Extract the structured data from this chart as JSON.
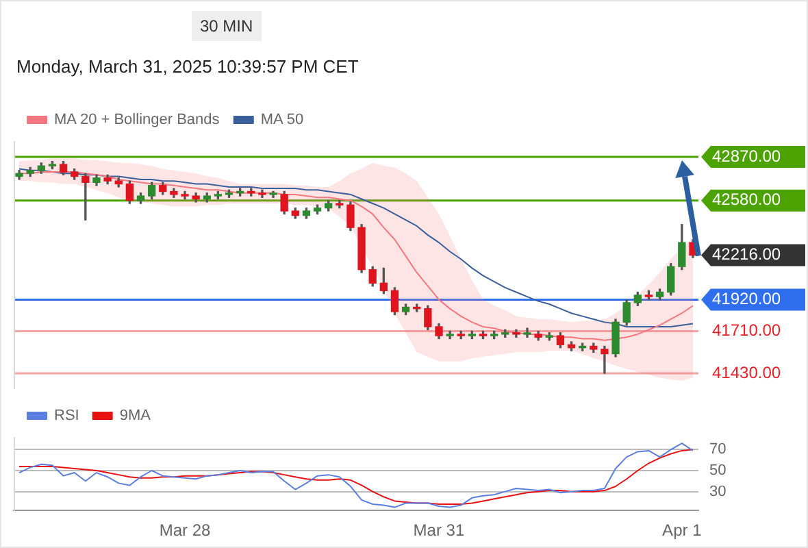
{
  "chart_data": [
    {
      "type": "candlestick",
      "subtitle": "Monday, March 31, 2025 10:39:57 PM CET",
      "annotations": [
        "30 MIN"
      ],
      "categories": [
        null,
        null,
        null,
        null,
        null,
        null,
        null,
        null,
        null,
        null,
        null,
        null,
        null,
        null,
        null,
        null,
        null,
        null,
        null,
        null,
        null,
        null,
        null,
        null,
        null,
        null,
        null,
        null,
        null,
        null,
        null,
        null,
        null,
        null,
        null,
        null,
        null,
        null,
        null,
        null,
        null,
        null,
        null,
        null,
        null,
        null,
        null,
        null,
        null,
        null,
        null,
        null,
        null,
        null,
        null,
        null,
        null,
        null,
        null,
        null,
        null,
        null
      ],
      "ohlc": [
        [
          42740,
          42780,
          42720,
          42760
        ],
        [
          42760,
          42800,
          42740,
          42780
        ],
        [
          42780,
          42830,
          42760,
          42810
        ],
        [
          42810,
          42840,
          42790,
          42820
        ],
        [
          42820,
          42840,
          42750,
          42770
        ],
        [
          42770,
          42790,
          42720,
          42740
        ],
        [
          42740,
          42760,
          42450,
          42700
        ],
        [
          42700,
          42750,
          42680,
          42730
        ],
        [
          42730,
          42750,
          42690,
          42710
        ],
        [
          42710,
          42730,
          42670,
          42690
        ],
        [
          42690,
          42710,
          42560,
          42580
        ],
        [
          42580,
          42630,
          42560,
          42610
        ],
        [
          42610,
          42700,
          42590,
          42680
        ],
        [
          42680,
          42700,
          42620,
          42640
        ],
        [
          42640,
          42660,
          42600,
          42620
        ],
        [
          42620,
          42640,
          42590,
          42610
        ],
        [
          42610,
          42630,
          42570,
          42590
        ],
        [
          42590,
          42630,
          42570,
          42610
        ],
        [
          42610,
          42640,
          42590,
          42620
        ],
        [
          42620,
          42650,
          42600,
          42630
        ],
        [
          42630,
          42660,
          42610,
          42640
        ],
        [
          42640,
          42660,
          42610,
          42630
        ],
        [
          42630,
          42650,
          42600,
          42620
        ],
        [
          42620,
          42640,
          42600,
          42620
        ],
        [
          42620,
          42640,
          42490,
          42510
        ],
        [
          42510,
          42530,
          42460,
          42480
        ],
        [
          42480,
          42530,
          42460,
          42510
        ],
        [
          42510,
          42550,
          42490,
          42530
        ],
        [
          42530,
          42580,
          42510,
          42560
        ],
        [
          42560,
          42580,
          42530,
          42550
        ],
        [
          42550,
          42570,
          42380,
          42400
        ],
        [
          42400,
          42420,
          42100,
          42120
        ],
        [
          42120,
          42140,
          42010,
          42030
        ],
        [
          42030,
          42130,
          41960,
          41980
        ],
        [
          41980,
          42000,
          41820,
          41840
        ],
        [
          41840,
          41890,
          41820,
          41870
        ],
        [
          41870,
          41890,
          41840,
          41860
        ],
        [
          41860,
          41880,
          41720,
          41740
        ],
        [
          41740,
          41760,
          41660,
          41680
        ],
        [
          41680,
          41710,
          41660,
          41690
        ],
        [
          41690,
          41710,
          41660,
          41680
        ],
        [
          41680,
          41710,
          41660,
          41690
        ],
        [
          41690,
          41710,
          41660,
          41680
        ],
        [
          41680,
          41710,
          41660,
          41690
        ],
        [
          41690,
          41720,
          41670,
          41700
        ],
        [
          41700,
          41720,
          41670,
          41690
        ],
        [
          41690,
          41730,
          41670,
          41690
        ],
        [
          41690,
          41710,
          41650,
          41670
        ],
        [
          41670,
          41700,
          41650,
          41680
        ],
        [
          41680,
          41700,
          41600,
          41620
        ],
        [
          41620,
          41640,
          41580,
          41600
        ],
        [
          41600,
          41630,
          41580,
          41610
        ],
        [
          41610,
          41630,
          41570,
          41590
        ],
        [
          41590,
          41610,
          41430,
          41560
        ],
        [
          41560,
          41790,
          41540,
          41770
        ],
        [
          41770,
          41920,
          41750,
          41900
        ],
        [
          41900,
          41970,
          41880,
          41950
        ],
        [
          41950,
          41980,
          41920,
          41940
        ],
        [
          41940,
          41990,
          41920,
          41970
        ],
        [
          41970,
          42160,
          41950,
          42140
        ],
        [
          42140,
          42420,
          42120,
          42300
        ],
        [
          42300,
          42320,
          42200,
          42216
        ]
      ],
      "series": [
        {
          "name": "MA 20 + Bollinger Bands",
          "type": "line",
          "color": "#f4777f",
          "values": [
            42760,
            42760,
            42770,
            42770,
            42770,
            42770,
            42760,
            42750,
            42740,
            42720,
            42710,
            42700,
            42690,
            42690,
            42680,
            42670,
            42660,
            42650,
            42650,
            42640,
            42630,
            42630,
            42630,
            42630,
            42620,
            42620,
            42610,
            42600,
            42600,
            42590,
            42580,
            42540,
            42490,
            42400,
            42320,
            42210,
            42100,
            42010,
            41920,
            41860,
            41810,
            41770,
            41740,
            41730,
            41710,
            41700,
            41690,
            41690,
            41680,
            41670,
            41670,
            41660,
            41660,
            41650,
            41660,
            41670,
            41690,
            41720,
            41750,
            41790,
            41830,
            41880
          ],
          "upper": [
            42840,
            42850,
            42850,
            42860,
            42860,
            42860,
            42850,
            42850,
            42840,
            42830,
            42830,
            42820,
            42810,
            42790,
            42780,
            42770,
            42760,
            42740,
            42730,
            42710,
            42690,
            42690,
            42690,
            42690,
            42690,
            42680,
            42680,
            42670,
            42670,
            42710,
            42760,
            42790,
            42830,
            42810,
            42800,
            42760,
            42710,
            42600,
            42490,
            42340,
            42190,
            42050,
            41920,
            41880,
            41850,
            41810,
            41800,
            41790,
            41790,
            41780,
            41770,
            41780,
            41780,
            41790,
            41830,
            41880,
            41950,
            42020,
            42100,
            42190,
            42270,
            42330
          ],
          "lower": [
            42710,
            42710,
            42700,
            42700,
            42690,
            42690,
            42670,
            42650,
            42630,
            42600,
            42580,
            42570,
            42560,
            42550,
            42540,
            42540,
            42540,
            42550,
            42550,
            42560,
            42560,
            42560,
            42560,
            42560,
            42560,
            42550,
            42550,
            42540,
            42530,
            42470,
            42410,
            42270,
            42140,
            41990,
            41830,
            41700,
            41570,
            41540,
            41510,
            41510,
            41510,
            41530,
            41540,
            41550,
            41560,
            41570,
            41570,
            41570,
            41580,
            41580,
            41580,
            41560,
            41530,
            41510,
            41480,
            41460,
            41440,
            41420,
            41400,
            41390,
            41380,
            41400
          ]
        },
        {
          "name": "MA 50",
          "type": "line",
          "color": "#3a5f9a",
          "values": [
            42790,
            42780,
            42780,
            42770,
            42760,
            42760,
            42750,
            42750,
            42740,
            42740,
            42730,
            42720,
            42720,
            42710,
            42710,
            42700,
            42690,
            42690,
            42680,
            42670,
            42670,
            42670,
            42660,
            42660,
            42660,
            42660,
            42650,
            42650,
            42640,
            42630,
            42620,
            42590,
            42560,
            42530,
            42490,
            42450,
            42410,
            42350,
            42300,
            42240,
            42190,
            42130,
            42080,
            42040,
            42000,
            41970,
            41940,
            41910,
            41890,
            41860,
            41830,
            41810,
            41790,
            41770,
            41760,
            41740,
            41740,
            41740,
            41740,
            41740,
            41750,
            41760
          ]
        }
      ],
      "ylim": [
        41325,
        42975
      ],
      "ref_lines": [
        {
          "axis": "y",
          "value": 42870,
          "label": "42870.00",
          "color": "#4ca300"
        },
        {
          "axis": "y",
          "value": 42580,
          "label": "42580.00",
          "color": "#4ca300"
        },
        {
          "axis": "y",
          "value": 42216,
          "label": "42216.00",
          "color": "#333333",
          "line_style": "dotted"
        },
        {
          "axis": "y",
          "value": 41920,
          "label": "41920.00",
          "color": "#2f6fee"
        },
        {
          "axis": "y",
          "value": 41710,
          "label": "41710.00",
          "color": "#f5a3a3"
        },
        {
          "axis": "y",
          "value": 41430,
          "label": "41430.00",
          "color": "#f5a3a3"
        }
      ],
      "legend": "top left",
      "tick_labels": false,
      "marker": "none"
    },
    {
      "type": "line",
      "categories": [
        null,
        null,
        null,
        null,
        null,
        null,
        null,
        null,
        null,
        null,
        null,
        null,
        null,
        null,
        null,
        "Mar 28",
        null,
        null,
        null,
        null,
        null,
        null,
        null,
        null,
        null,
        null,
        null,
        null,
        null,
        null,
        null,
        null,
        null,
        null,
        null,
        null,
        null,
        null,
        "Mar 31",
        null,
        null,
        null,
        null,
        null,
        null,
        null,
        null,
        null,
        null,
        null,
        null,
        null,
        null,
        null,
        null,
        null,
        null,
        null,
        null,
        null,
        "Apr 1",
        null
      ],
      "series": [
        {
          "name": "RSI",
          "color": "#5b7fe0",
          "values": [
            48,
            53,
            56,
            55,
            45,
            48,
            40,
            48,
            44,
            38,
            36,
            44,
            50,
            45,
            44,
            43,
            42,
            45,
            46,
            48,
            50,
            48,
            49,
            49,
            40,
            32,
            38,
            45,
            46,
            44,
            35,
            22,
            18,
            17,
            15,
            19,
            19,
            19,
            16,
            15,
            17,
            24,
            26,
            27,
            30,
            33,
            32,
            31,
            32,
            29,
            30,
            31,
            31,
            33,
            52,
            63,
            68,
            69,
            63,
            70,
            76,
            69
          ]
        },
        {
          "name": "9MA",
          "color": "#e81010",
          "values": [
            54,
            54,
            54,
            54,
            53,
            52,
            51,
            50,
            48,
            46,
            44,
            43,
            43,
            44,
            44,
            45,
            45,
            45,
            46,
            47,
            48,
            49,
            49,
            48,
            46,
            44,
            42,
            41,
            41,
            42,
            41,
            36,
            30,
            25,
            21,
            20,
            19,
            19,
            18,
            18,
            18,
            19,
            21,
            23,
            25,
            27,
            29,
            30,
            31,
            31,
            30,
            30,
            30,
            31,
            35,
            42,
            50,
            57,
            62,
            66,
            69,
            70
          ]
        }
      ],
      "ylim": [
        12,
        82
      ],
      "yticks": [
        30,
        50,
        70
      ],
      "grid": "y",
      "legend": "top left",
      "marker": "none"
    }
  ]
}
